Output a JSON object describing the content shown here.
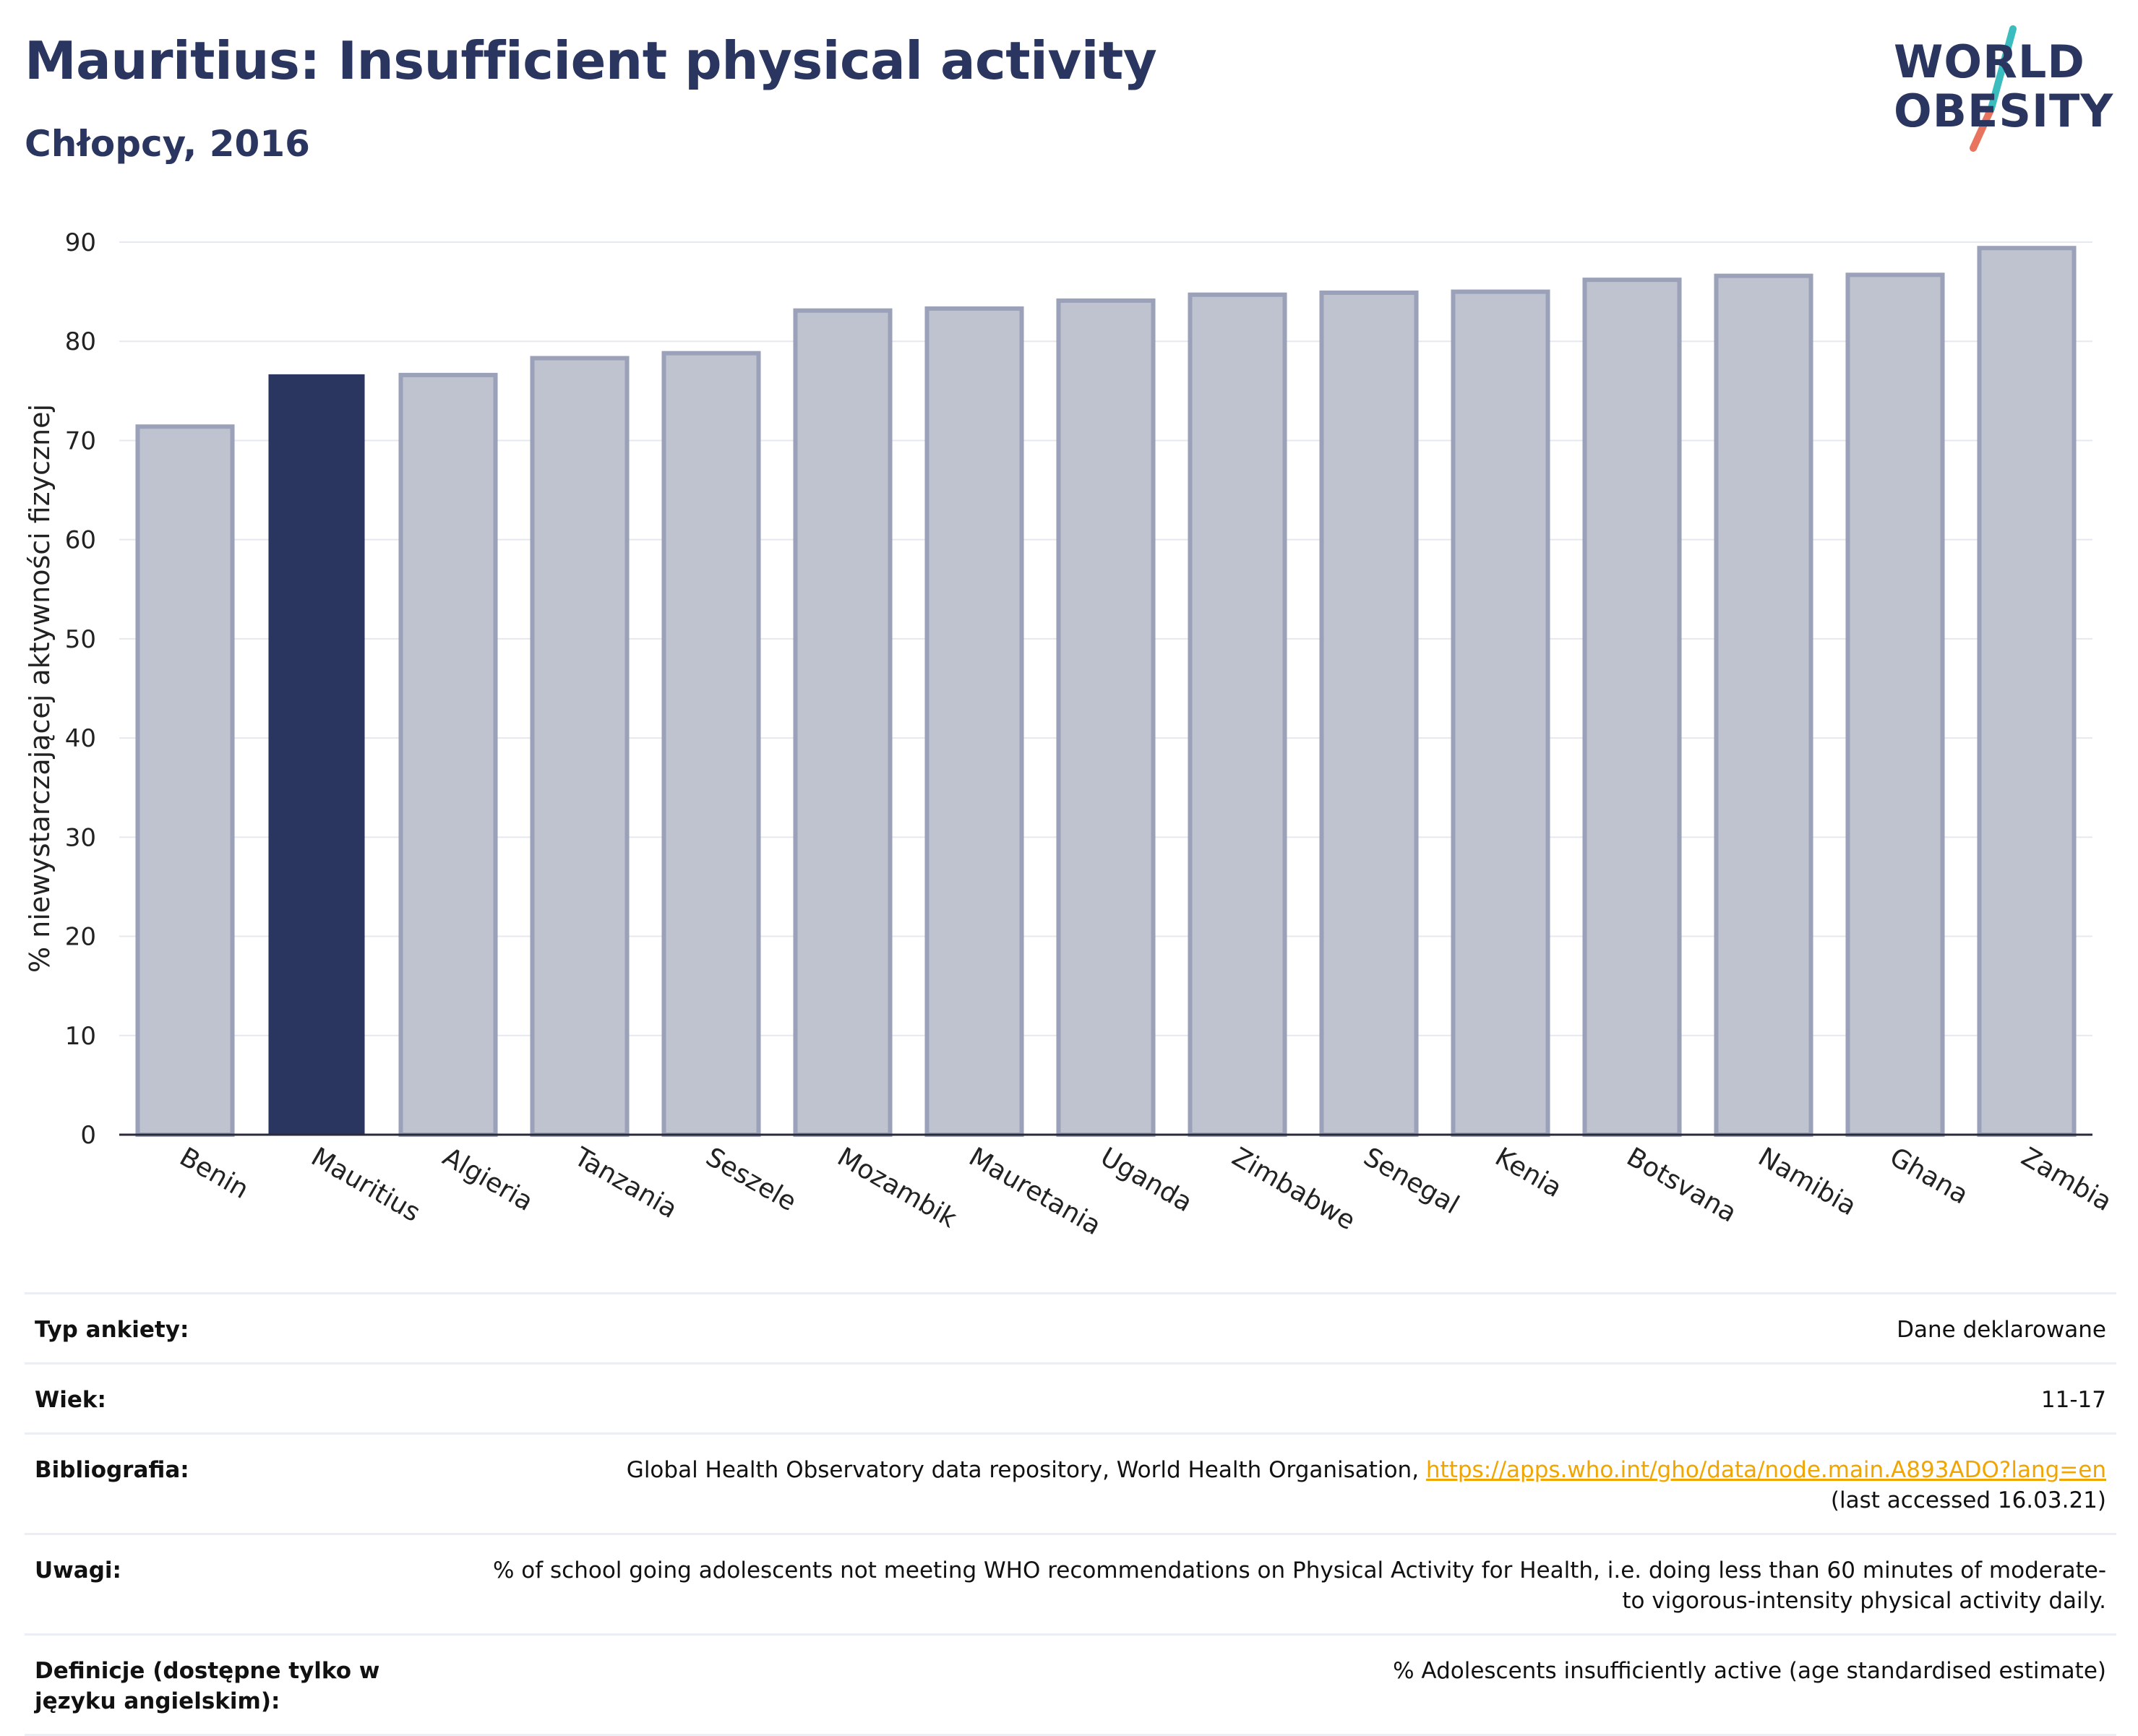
{
  "header": {
    "title": "Mauritius: Insufficient physical activity",
    "subtitle": "Chłopcy, 2016"
  },
  "logo": {
    "line1": "WORLD",
    "line2": "OBESITY",
    "colors": {
      "text": "#2a3560",
      "slash_top": "#3bbdc0",
      "slash_bottom": "#e8735f"
    }
  },
  "colors": {
    "highlight": "#2a3560",
    "bar_fill": "#bfc3d0",
    "bar_stroke": "#9aa1b8",
    "grid": "#e6e8ef",
    "axis": "#2a2a3a",
    "link": "#f0a500"
  },
  "chart_data": {
    "type": "bar",
    "title": "Mauritius: Insufficient physical activity",
    "subtitle": "Chłopcy, 2016",
    "xlabel": "",
    "ylabel": "% niewystarczającej aktywności fizycznej",
    "ylim": [
      0,
      90
    ],
    "yticks": [
      0,
      10,
      20,
      30,
      40,
      50,
      60,
      70,
      80,
      90
    ],
    "grid": true,
    "highlight": "Mauritius",
    "categories": [
      "Benin",
      "Mauritius",
      "Algieria",
      "Tanzania",
      "Seszele",
      "Mozambik",
      "Mauretania",
      "Uganda",
      "Zimbabwe",
      "Senegal",
      "Kenia",
      "Botsvana",
      "Namibia",
      "Ghana",
      "Zambia"
    ],
    "values": [
      71.4,
      76.6,
      76.6,
      78.3,
      78.8,
      83.1,
      83.3,
      84.1,
      84.7,
      84.9,
      85.0,
      86.2,
      86.6,
      86.7,
      89.4
    ]
  },
  "metadata": [
    {
      "label": "Typ ankiety:",
      "value": "Dane deklarowane"
    },
    {
      "label": "Wiek:",
      "value": "11-17"
    },
    {
      "label": "Bibliografia:",
      "value": "Global Health Observatory data repository, World Health Organisation, ",
      "link": "https://apps.who.int/gho/data/node.main.A893ADO?lang=en",
      "value_after": "(last accessed 16.03.21)"
    },
    {
      "label": "Uwagi:",
      "value": "% of school going adolescents not meeting WHO recommendations on Physical Activity for Health, i.e. doing less than 60 minutes of moderate- to vigorous-intensity physical activity daily."
    },
    {
      "label": "Definicje (dostępne tylko w języku angielskim):",
      "value": "% Adolescents insufficiently active (age standardised estimate)"
    }
  ]
}
